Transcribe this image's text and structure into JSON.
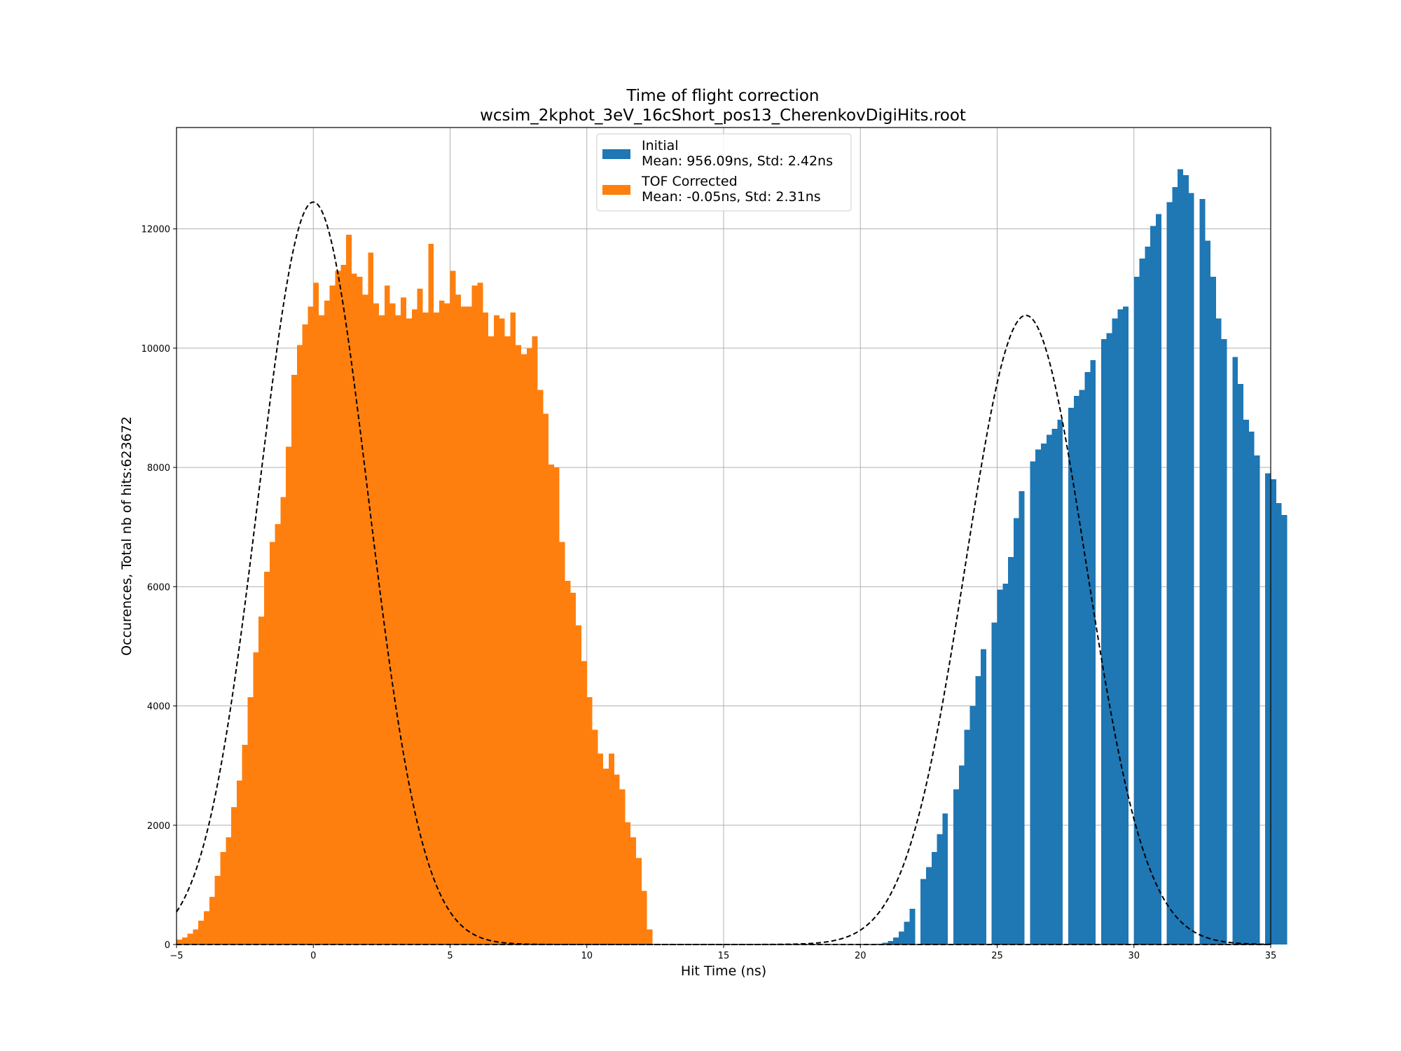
{
  "chart_data": {
    "type": "bar",
    "title": "Time of flight correction",
    "subtitle": "wcsim_2kphot_3eV_16cShort_pos13_CherenkovDigiHits.root",
    "xlabel": "Hit Time (ns)",
    "ylabel": "Occurences, Total nb of hits:623672",
    "xlim": [
      -5,
      35
    ],
    "ylim": [
      0,
      13700
    ],
    "xticks": [
      -5,
      0,
      5,
      10,
      15,
      20,
      25,
      30,
      35
    ],
    "yticks": [
      0,
      2000,
      4000,
      6000,
      8000,
      10000,
      12000
    ],
    "grid": true,
    "legend_position": "upper center",
    "bin_width": 0.2,
    "series": [
      {
        "name": "Initial",
        "legend_line2": "Mean: 956.09ns, Std: 2.42ns",
        "color": "#1f77b4",
        "x_start": 20.6,
        "values": [
          10,
          30,
          60,
          120,
          220,
          380,
          600,
          0,
          1100,
          1300,
          1550,
          1850,
          2200,
          0,
          2600,
          3000,
          3600,
          4000,
          4500,
          4950,
          0,
          5400,
          5950,
          6050,
          6500,
          7150,
          7600,
          0,
          8100,
          8300,
          8400,
          8550,
          8650,
          8800,
          0,
          9000,
          9200,
          9300,
          9600,
          9800,
          0,
          10150,
          10250,
          10500,
          10650,
          10700,
          0,
          11200,
          11500,
          11700,
          12050,
          12250,
          0,
          12450,
          12700,
          13000,
          12900,
          12600,
          0,
          12500,
          11800,
          11200,
          10500,
          10150,
          0,
          9850,
          9400,
          8800,
          8600,
          8200,
          0,
          7900,
          7800,
          7400,
          7200
        ]
      },
      {
        "name": "TOF Corrected",
        "legend_line2": "Mean: -0.05ns, Std: 2.31ns",
        "color": "#ff7f0e",
        "x_start": -5.0,
        "values": [
          80,
          120,
          180,
          250,
          400,
          560,
          800,
          1150,
          1550,
          1800,
          2300,
          2750,
          3350,
          4150,
          4900,
          5500,
          6250,
          6750,
          7050,
          7500,
          8350,
          9550,
          10050,
          10400,
          10700,
          11100,
          10550,
          10800,
          11050,
          11300,
          11400,
          11900,
          11250,
          11200,
          10900,
          11600,
          10750,
          10550,
          11050,
          10750,
          10550,
          10850,
          10500,
          10650,
          11000,
          10600,
          11750,
          10600,
          10800,
          10750,
          11300,
          10900,
          10700,
          10700,
          11050,
          11100,
          10600,
          10200,
          10550,
          10500,
          10200,
          10600,
          10050,
          9900,
          10000,
          10200,
          9300,
          8900,
          8050,
          8000,
          6750,
          6100,
          5900,
          5350,
          4750,
          4150,
          3600,
          3200,
          2950,
          3200,
          2850,
          2600,
          2050,
          1800,
          1450,
          900,
          250
        ]
      }
    ],
    "fit_curves": [
      {
        "style": "dashed",
        "color": "#000000",
        "amplitude": 12450,
        "mean": 0.0,
        "sigma": 2.0
      },
      {
        "style": "dashed",
        "color": "#000000",
        "amplitude": 10550,
        "mean": 26.05,
        "sigma": 2.2
      }
    ]
  }
}
